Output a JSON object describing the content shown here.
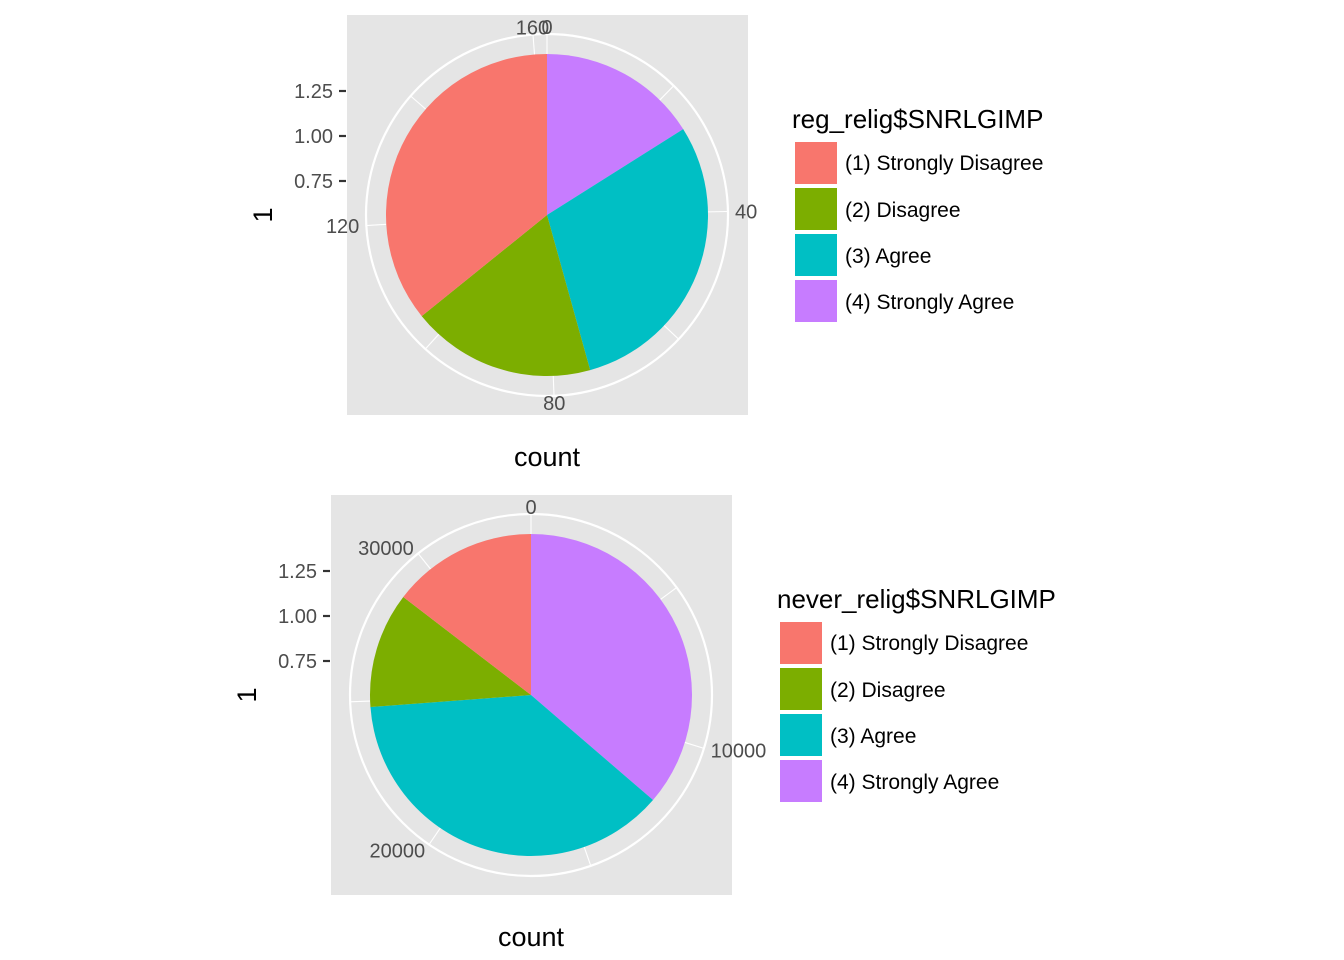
{
  "chart_data": [
    {
      "type": "pie",
      "xlabel": "count",
      "ylabel": "1",
      "y_ticks": [
        "1.25",
        "1.00",
        "0.75"
      ],
      "angle_ticks": [
        {
          "value": 0,
          "label": "0"
        },
        {
          "value": 40,
          "label": "40"
        },
        {
          "value": 80,
          "label": "80"
        },
        {
          "value": 120,
          "label": "120"
        },
        {
          "value": 160,
          "label": "160"
        }
      ],
      "legend_title": "reg_relig$SNRLGIMP",
      "categories": [
        "(1) Strongly Disagree",
        "(2) Disagree",
        "(3) Agree",
        "(4) Strongly Agree"
      ],
      "values": [
        58,
        30,
        48,
        26
      ],
      "colors": [
        "#F8766D",
        "#7CAE00",
        "#00BFC4",
        "#C77CFF"
      ],
      "legend_position": "right"
    },
    {
      "type": "pie",
      "xlabel": "count",
      "ylabel": "1",
      "y_ticks": [
        "1.25",
        "1.00",
        "0.75"
      ],
      "angle_ticks": [
        {
          "value": 0,
          "label": "0"
        },
        {
          "value": 10000,
          "label": "10000"
        },
        {
          "value": 20000,
          "label": "20000"
        },
        {
          "value": 30000,
          "label": "30000"
        }
      ],
      "legend_title": "never_relig$SNRLGIMP",
      "categories": [
        "(1) Strongly Disagree",
        "(2) Disagree",
        "(3) Agree",
        "(4) Strongly Agree"
      ],
      "values": [
        4900,
        3900,
        12600,
        12200
      ],
      "colors": [
        "#F8766D",
        "#7CAE00",
        "#00BFC4",
        "#C77CFF"
      ],
      "legend_position": "right"
    }
  ]
}
